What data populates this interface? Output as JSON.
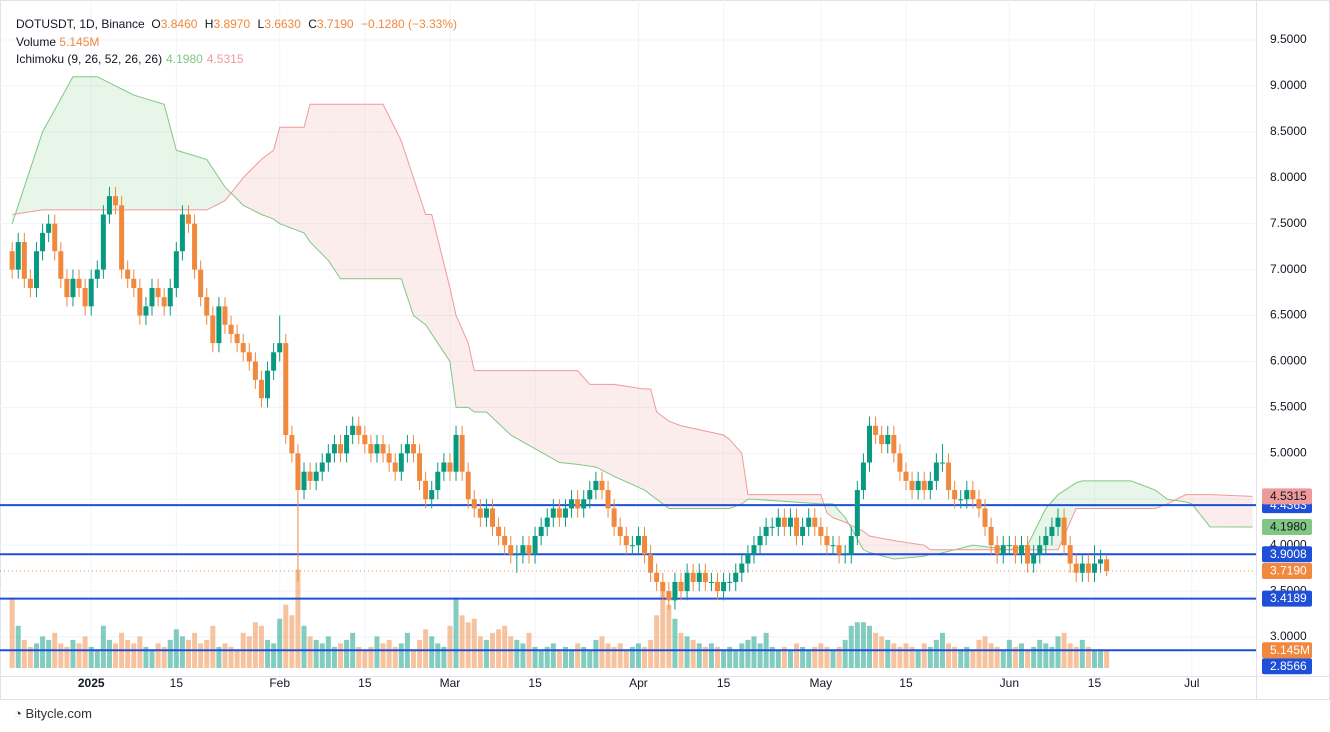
{
  "chart_data": {
    "type": "candlestick",
    "header": {
      "symbol": "DOTUSDT, 1D, Binance",
      "o": "O",
      "open": "3.8460",
      "h": "H",
      "high": "3.8970",
      "l": "L",
      "low": "3.6630",
      "c": "C",
      "close": "3.7190",
      "change": "−0.1280 (−3.33%)"
    },
    "up_color": "#089981",
    "down_color": "#f0883e",
    "ylim": [
      2.576,
      9.935
    ],
    "yticks": [
      {
        "value": 3.0,
        "label": "3.0000"
      },
      {
        "value": 3.5,
        "label": "3.5000"
      },
      {
        "value": 4.0,
        "label": "4.0000"
      },
      {
        "value": 4.5,
        "label": "4.5000"
      },
      {
        "value": 5.0,
        "label": "5.0000"
      },
      {
        "value": 5.5,
        "label": "5.5000"
      },
      {
        "value": 6.0,
        "label": "6.0000"
      },
      {
        "value": 6.5,
        "label": "6.5000"
      },
      {
        "value": 7.0,
        "label": "7.0000"
      },
      {
        "value": 7.5,
        "label": "7.5000"
      },
      {
        "value": 8.0,
        "label": "8.0000"
      },
      {
        "value": 8.5,
        "label": "8.5000"
      },
      {
        "value": 9.0,
        "label": "9.0000"
      },
      {
        "value": 9.5,
        "label": "9.5000"
      }
    ],
    "xlim": [
      -2,
      204.4
    ],
    "xticks": [
      {
        "value": 13,
        "label": "2025"
      },
      {
        "value": 27,
        "label": "15"
      },
      {
        "value": 44,
        "label": "Feb"
      },
      {
        "value": 58,
        "label": "15"
      },
      {
        "value": 72,
        "label": "Mar"
      },
      {
        "value": 86,
        "label": "15"
      },
      {
        "value": 103,
        "label": "Apr"
      },
      {
        "value": 117,
        "label": "15"
      },
      {
        "value": 133,
        "label": "May"
      },
      {
        "value": 147,
        "label": "15"
      },
      {
        "value": 164,
        "label": "Jun"
      },
      {
        "value": 178,
        "label": "15"
      },
      {
        "value": 194,
        "label": "Jul"
      }
    ],
    "grid": true,
    "ohlc": [
      [
        7.2,
        7.3,
        6.9,
        7.0
      ],
      [
        7.0,
        7.4,
        6.9,
        7.3
      ],
      [
        7.3,
        7.4,
        6.8,
        6.9
      ],
      [
        6.9,
        7.0,
        6.7,
        6.8
      ],
      [
        6.8,
        7.3,
        6.7,
        7.2
      ],
      [
        7.2,
        7.5,
        7.1,
        7.4
      ],
      [
        7.4,
        7.6,
        7.3,
        7.5
      ],
      [
        7.5,
        7.6,
        7.1,
        7.2
      ],
      [
        7.2,
        7.3,
        6.8,
        6.9
      ],
      [
        6.9,
        7.0,
        6.6,
        6.7
      ],
      [
        6.7,
        7.0,
        6.6,
        6.9
      ],
      [
        6.9,
        7.0,
        6.7,
        6.8
      ],
      [
        6.8,
        6.9,
        6.5,
        6.6
      ],
      [
        6.6,
        7.0,
        6.5,
        6.9
      ],
      [
        6.9,
        7.1,
        6.8,
        7.0
      ],
      [
        7.0,
        7.7,
        6.9,
        7.6
      ],
      [
        7.6,
        7.9,
        7.5,
        7.8
      ],
      [
        7.8,
        7.9,
        7.6,
        7.7
      ],
      [
        7.7,
        7.8,
        6.9,
        7.0
      ],
      [
        7.0,
        7.1,
        6.8,
        6.9
      ],
      [
        6.9,
        7.0,
        6.7,
        6.8
      ],
      [
        6.8,
        6.9,
        6.4,
        6.5
      ],
      [
        6.5,
        6.7,
        6.4,
        6.6
      ],
      [
        6.6,
        6.9,
        6.5,
        6.8
      ],
      [
        6.8,
        6.9,
        6.6,
        6.7
      ],
      [
        6.7,
        6.8,
        6.5,
        6.6
      ],
      [
        6.6,
        6.9,
        6.5,
        6.8
      ],
      [
        6.8,
        7.3,
        6.7,
        7.2
      ],
      [
        7.2,
        7.7,
        7.1,
        7.6
      ],
      [
        7.6,
        7.7,
        7.4,
        7.5
      ],
      [
        7.5,
        7.6,
        6.9,
        7.0
      ],
      [
        7.0,
        7.1,
        6.6,
        6.7
      ],
      [
        6.7,
        6.8,
        6.4,
        6.5
      ],
      [
        6.5,
        6.6,
        6.1,
        6.2
      ],
      [
        6.2,
        6.7,
        6.1,
        6.6
      ],
      [
        6.6,
        6.7,
        6.3,
        6.4
      ],
      [
        6.4,
        6.5,
        6.2,
        6.3
      ],
      [
        6.3,
        6.4,
        6.1,
        6.2
      ],
      [
        6.2,
        6.3,
        6.0,
        6.1
      ],
      [
        6.1,
        6.2,
        5.9,
        6.0
      ],
      [
        6.0,
        6.1,
        5.7,
        5.8
      ],
      [
        5.8,
        5.9,
        5.5,
        5.6
      ],
      [
        5.6,
        6.0,
        5.5,
        5.9
      ],
      [
        5.9,
        6.2,
        5.8,
        6.1
      ],
      [
        6.1,
        6.5,
        6.0,
        6.2
      ],
      [
        6.2,
        6.3,
        5.1,
        5.2
      ],
      [
        5.2,
        5.3,
        4.9,
        5.0
      ],
      [
        5.0,
        5.1,
        3.6,
        4.6
      ],
      [
        4.6,
        4.9,
        4.5,
        4.8
      ],
      [
        4.8,
        4.9,
        4.6,
        4.7
      ],
      [
        4.7,
        4.9,
        4.6,
        4.8
      ],
      [
        4.8,
        5.0,
        4.7,
        4.9
      ],
      [
        4.9,
        5.1,
        4.8,
        5.0
      ],
      [
        5.0,
        5.2,
        4.9,
        5.1
      ],
      [
        5.1,
        5.2,
        4.9,
        5.0
      ],
      [
        5.0,
        5.3,
        4.9,
        5.2
      ],
      [
        5.2,
        5.4,
        5.1,
        5.3
      ],
      [
        5.3,
        5.4,
        5.1,
        5.2
      ],
      [
        5.2,
        5.3,
        5.0,
        5.1
      ],
      [
        5.1,
        5.2,
        4.9,
        5.0
      ],
      [
        5.0,
        5.2,
        4.9,
        5.1
      ],
      [
        5.1,
        5.2,
        4.9,
        5.0
      ],
      [
        5.0,
        5.1,
        4.8,
        4.9
      ],
      [
        4.9,
        5.0,
        4.7,
        4.8
      ],
      [
        4.8,
        5.1,
        4.7,
        5.0
      ],
      [
        5.0,
        5.2,
        4.9,
        5.1
      ],
      [
        5.1,
        5.2,
        4.9,
        5.0
      ],
      [
        5.0,
        5.1,
        4.6,
        4.7
      ],
      [
        4.7,
        4.8,
        4.4,
        4.5
      ],
      [
        4.5,
        4.7,
        4.4,
        4.6
      ],
      [
        4.6,
        4.9,
        4.5,
        4.8
      ],
      [
        4.8,
        5.0,
        4.7,
        4.9
      ],
      [
        4.9,
        5.0,
        4.7,
        4.8
      ],
      [
        4.8,
        5.3,
        4.7,
        5.2
      ],
      [
        5.2,
        5.3,
        4.7,
        4.8
      ],
      [
        4.8,
        4.9,
        4.4,
        4.5
      ],
      [
        4.5,
        4.6,
        4.3,
        4.4
      ],
      [
        4.4,
        4.5,
        4.2,
        4.3
      ],
      [
        4.3,
        4.5,
        4.2,
        4.4
      ],
      [
        4.4,
        4.5,
        4.1,
        4.2
      ],
      [
        4.2,
        4.3,
        4.0,
        4.1
      ],
      [
        4.1,
        4.2,
        3.9,
        4.0
      ],
      [
        4.0,
        4.1,
        3.8,
        3.9
      ],
      [
        3.9,
        4.0,
        3.7,
        3.9
      ],
      [
        3.9,
        4.1,
        3.8,
        4.0
      ],
      [
        4.0,
        4.1,
        3.8,
        3.9
      ],
      [
        3.9,
        4.2,
        3.8,
        4.1
      ],
      [
        4.1,
        4.3,
        4.0,
        4.2
      ],
      [
        4.2,
        4.4,
        4.1,
        4.3
      ],
      [
        4.3,
        4.5,
        4.2,
        4.4
      ],
      [
        4.4,
        4.5,
        4.2,
        4.3
      ],
      [
        4.3,
        4.5,
        4.2,
        4.4
      ],
      [
        4.4,
        4.6,
        4.3,
        4.5
      ],
      [
        4.5,
        4.6,
        4.3,
        4.4
      ],
      [
        4.4,
        4.6,
        4.3,
        4.5
      ],
      [
        4.5,
        4.7,
        4.4,
        4.6
      ],
      [
        4.6,
        4.8,
        4.5,
        4.7
      ],
      [
        4.7,
        4.8,
        4.5,
        4.6
      ],
      [
        4.6,
        4.7,
        4.3,
        4.4
      ],
      [
        4.4,
        4.5,
        4.1,
        4.2
      ],
      [
        4.2,
        4.3,
        4.0,
        4.1
      ],
      [
        4.1,
        4.2,
        3.9,
        4.0
      ],
      [
        4.0,
        4.1,
        3.9,
        4.0
      ],
      [
        4.0,
        4.2,
        3.9,
        4.1
      ],
      [
        4.1,
        4.2,
        3.8,
        3.9
      ],
      [
        3.9,
        4.0,
        3.6,
        3.7
      ],
      [
        3.7,
        3.8,
        3.5,
        3.6
      ],
      [
        3.6,
        3.7,
        3.4,
        3.5
      ],
      [
        3.5,
        3.6,
        3.3,
        3.4
      ],
      [
        3.4,
        3.7,
        3.3,
        3.6
      ],
      [
        3.6,
        3.7,
        3.4,
        3.5
      ],
      [
        3.5,
        3.8,
        3.4,
        3.7
      ],
      [
        3.7,
        3.8,
        3.5,
        3.6
      ],
      [
        3.6,
        3.8,
        3.5,
        3.7
      ],
      [
        3.7,
        3.8,
        3.5,
        3.6
      ],
      [
        3.6,
        3.7,
        3.5,
        3.6
      ],
      [
        3.6,
        3.7,
        3.4,
        3.5
      ],
      [
        3.5,
        3.7,
        3.4,
        3.6
      ],
      [
        3.6,
        3.7,
        3.5,
        3.6
      ],
      [
        3.6,
        3.8,
        3.5,
        3.7
      ],
      [
        3.7,
        3.9,
        3.6,
        3.8
      ],
      [
        3.8,
        4.0,
        3.7,
        3.9
      ],
      [
        3.9,
        4.1,
        3.8,
        4.0
      ],
      [
        4.0,
        4.2,
        3.9,
        4.1
      ],
      [
        4.1,
        4.3,
        4.0,
        4.2
      ],
      [
        4.2,
        4.3,
        4.1,
        4.2
      ],
      [
        4.2,
        4.4,
        4.1,
        4.3
      ],
      [
        4.3,
        4.4,
        4.1,
        4.2
      ],
      [
        4.2,
        4.4,
        4.1,
        4.3
      ],
      [
        4.3,
        4.4,
        4.0,
        4.1
      ],
      [
        4.1,
        4.3,
        4.0,
        4.2
      ],
      [
        4.2,
        4.4,
        4.1,
        4.3
      ],
      [
        4.3,
        4.4,
        4.1,
        4.2
      ],
      [
        4.2,
        4.3,
        4.0,
        4.1
      ],
      [
        4.1,
        4.2,
        3.9,
        4.0
      ],
      [
        4.0,
        4.1,
        3.9,
        4.0
      ],
      [
        4.0,
        4.1,
        3.8,
        3.9
      ],
      [
        3.9,
        4.0,
        3.8,
        3.9
      ],
      [
        3.9,
        4.2,
        3.8,
        4.1
      ],
      [
        4.1,
        4.7,
        4.0,
        4.6
      ],
      [
        4.6,
        5.0,
        4.5,
        4.9
      ],
      [
        4.9,
        5.4,
        4.8,
        5.3
      ],
      [
        5.3,
        5.4,
        5.1,
        5.2
      ],
      [
        5.2,
        5.3,
        5.0,
        5.1
      ],
      [
        5.1,
        5.3,
        5.0,
        5.2
      ],
      [
        5.2,
        5.3,
        4.9,
        5.0
      ],
      [
        5.0,
        5.1,
        4.7,
        4.8
      ],
      [
        4.8,
        4.9,
        4.6,
        4.7
      ],
      [
        4.7,
        4.8,
        4.5,
        4.6
      ],
      [
        4.6,
        4.8,
        4.5,
        4.7
      ],
      [
        4.7,
        4.8,
        4.5,
        4.6
      ],
      [
        4.6,
        4.8,
        4.5,
        4.7
      ],
      [
        4.7,
        5.0,
        4.6,
        4.9
      ],
      [
        4.9,
        5.1,
        4.8,
        4.9
      ],
      [
        4.9,
        5.0,
        4.5,
        4.6
      ],
      [
        4.6,
        4.7,
        4.4,
        4.5
      ],
      [
        4.5,
        4.6,
        4.4,
        4.5
      ],
      [
        4.5,
        4.7,
        4.4,
        4.6
      ],
      [
        4.6,
        4.7,
        4.4,
        4.5
      ],
      [
        4.5,
        4.6,
        4.3,
        4.4
      ],
      [
        4.4,
        4.5,
        4.1,
        4.2
      ],
      [
        4.2,
        4.3,
        3.9,
        4.0
      ],
      [
        4.0,
        4.1,
        3.8,
        3.9
      ],
      [
        3.9,
        4.1,
        3.8,
        4.0
      ],
      [
        4.0,
        4.1,
        3.9,
        4.0
      ],
      [
        4.0,
        4.1,
        3.8,
        3.9
      ],
      [
        3.9,
        4.1,
        3.8,
        4.0
      ],
      [
        4.0,
        4.1,
        3.7,
        3.8
      ],
      [
        3.8,
        4.0,
        3.7,
        3.9
      ],
      [
        3.9,
        4.1,
        3.8,
        4.0
      ],
      [
        4.0,
        4.2,
        3.9,
        4.1
      ],
      [
        4.1,
        4.3,
        4.0,
        4.2
      ],
      [
        4.2,
        4.4,
        4.1,
        4.3
      ],
      [
        4.3,
        4.4,
        3.9,
        4.0
      ],
      [
        4.0,
        4.1,
        3.7,
        3.8
      ],
      [
        3.8,
        3.9,
        3.6,
        3.7
      ],
      [
        3.7,
        3.9,
        3.6,
        3.8
      ],
      [
        3.8,
        3.9,
        3.6,
        3.7
      ],
      [
        3.7,
        4.0,
        3.6,
        3.8
      ],
      [
        3.8,
        3.95,
        3.7,
        3.846
      ],
      [
        3.846,
        3.897,
        3.663,
        3.719
      ]
    ],
    "volume": {
      "name": "Volume",
      "last_label": "5.145M",
      "vlim": [
        0,
        190
      ],
      "values": [
        20,
        12,
        8,
        6,
        7,
        9,
        8,
        10,
        7,
        6,
        8,
        7,
        9,
        6,
        5,
        12,
        8,
        7,
        10,
        8,
        7,
        9,
        6,
        5,
        7,
        6,
        8,
        11,
        9,
        8,
        10,
        7,
        8,
        12,
        6,
        7,
        6,
        5,
        10,
        9,
        13,
        12,
        8,
        7,
        14,
        18,
        15,
        28,
        12,
        9,
        8,
        7,
        9,
        6,
        7,
        8,
        10,
        6,
        5,
        6,
        9,
        7,
        8,
        6,
        7,
        10,
        5,
        8,
        11,
        9,
        7,
        6,
        12,
        20,
        15,
        13,
        14,
        9,
        8,
        10,
        11,
        12,
        9,
        8,
        7,
        10,
        6,
        5,
        6,
        7,
        5,
        6,
        5,
        7,
        6,
        5,
        8,
        9,
        7,
        6,
        7,
        5,
        6,
        7,
        6,
        8,
        15,
        22,
        18,
        14,
        10,
        9,
        8,
        7,
        6,
        7,
        6,
        5,
        6,
        5,
        7,
        8,
        9,
        7,
        10,
        6,
        5,
        6,
        5,
        7,
        6,
        5,
        6,
        7,
        6,
        5,
        6,
        8,
        12,
        13,
        13,
        12,
        10,
        9,
        8,
        7,
        6,
        7,
        6,
        5,
        7,
        6,
        8,
        10,
        7,
        6,
        5,
        6,
        5,
        8,
        9,
        7,
        6,
        5,
        8,
        6,
        7,
        5,
        6,
        8,
        7,
        6,
        9,
        10,
        7,
        6,
        8,
        6,
        5,
        5,
        5.145
      ]
    },
    "cloud": {
      "name": "Ichimoku (9, 26, 52, 26, 26)",
      "span_a_label": "4.1980",
      "span_b_label": "4.5315",
      "span_a_color": "#81c784",
      "span_b_color": "#ef9a9a",
      "x": [
        0,
        5,
        10,
        14,
        20,
        25,
        27,
        32,
        35,
        38,
        41,
        43,
        44,
        48,
        49,
        52,
        54,
        61,
        64,
        66,
        68,
        69,
        72,
        73,
        75,
        76,
        78,
        82,
        90,
        93,
        95,
        96,
        99,
        104,
        105,
        106,
        108,
        110,
        117,
        118,
        120,
        121,
        122,
        133,
        134,
        135,
        137,
        140,
        141,
        145,
        150,
        151,
        152,
        158,
        164,
        167,
        170,
        172,
        175,
        176,
        184,
        188,
        190,
        193,
        194,
        197,
        204
      ],
      "span_a": [
        7.5,
        8.5,
        9.1,
        9.1,
        8.9,
        8.8,
        8.3,
        8.2,
        7.9,
        7.7,
        7.6,
        7.55,
        7.5,
        7.4,
        7.3,
        7.1,
        6.9,
        6.9,
        6.9,
        6.5,
        6.4,
        6.3,
        6.0,
        5.5,
        5.5,
        5.45,
        5.45,
        5.2,
        4.9,
        4.88,
        4.86,
        4.85,
        4.75,
        4.6,
        4.55,
        4.5,
        4.4,
        4.4,
        4.4,
        4.4,
        4.45,
        4.5,
        4.5,
        4.45,
        4.45,
        4.45,
        4.3,
        3.95,
        3.92,
        3.85,
        3.88,
        3.9,
        3.9,
        4.0,
        3.95,
        4.0,
        4.4,
        4.55,
        4.68,
        4.7,
        4.7,
        4.6,
        4.5,
        4.47,
        4.45,
        4.2,
        4.198
      ],
      "span_b": [
        7.6,
        7.65,
        7.65,
        7.65,
        7.65,
        7.65,
        7.65,
        7.65,
        7.75,
        8.0,
        8.2,
        8.3,
        8.55,
        8.55,
        8.8,
        8.8,
        8.8,
        8.8,
        8.4,
        8.0,
        7.6,
        7.6,
        6.8,
        6.5,
        6.2,
        5.9,
        5.9,
        5.9,
        5.9,
        5.9,
        5.75,
        5.75,
        5.75,
        5.7,
        5.7,
        5.45,
        5.35,
        5.3,
        5.2,
        5.15,
        5.0,
        4.55,
        4.55,
        4.55,
        4.35,
        4.3,
        4.25,
        4.15,
        4.1,
        4.05,
        4.0,
        3.95,
        3.95,
        3.95,
        3.95,
        3.95,
        3.95,
        3.95,
        4.4,
        4.4,
        4.4,
        4.4,
        4.45,
        4.55,
        4.55,
        4.55,
        4.5315
      ]
    },
    "levels": [
      4.4363,
      3.9008,
      3.4189,
      2.8566
    ],
    "level_color": "#1e4fd8",
    "footer": "Bitycle.com"
  }
}
